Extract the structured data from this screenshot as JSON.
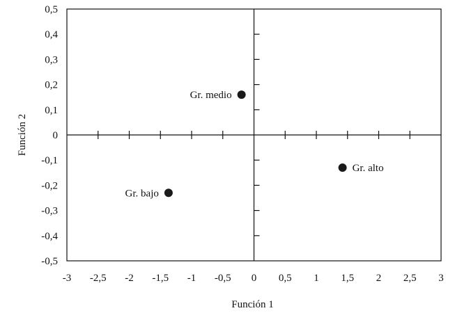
{
  "chart_data": {
    "type": "scatter",
    "xlabel": "Función 1",
    "ylabel": "Función 2",
    "xlim": [
      -3,
      3
    ],
    "ylim": [
      -0.5,
      0.5
    ],
    "x_ticks": [
      -3,
      -2.5,
      -2,
      -1.5,
      -1,
      -0.5,
      0,
      0.5,
      1,
      1.5,
      2,
      2.5,
      3
    ],
    "x_tick_labels": [
      "-3",
      "-2,5",
      "-2",
      "-1,5",
      "-1",
      "-0,5",
      "0",
      "0,5",
      "1",
      "1,5",
      "2",
      "2,5",
      "3"
    ],
    "y_ticks": [
      0.5,
      0.4,
      0.3,
      0.2,
      0.1,
      0,
      -0.1,
      -0.2,
      -0.3,
      -0.4,
      -0.5
    ],
    "y_tick_labels": [
      "0,5",
      "0,4",
      "0,3",
      "0,2",
      "0,1",
      "0",
      "-0,1",
      "-0,2",
      "-0,3",
      "-0,4",
      "-0,5"
    ],
    "points": [
      {
        "label": "Gr. medio",
        "x": -0.2,
        "y": 0.16,
        "label_side": "left"
      },
      {
        "label": "Gr. alto",
        "x": 1.42,
        "y": -0.13,
        "label_side": "right"
      },
      {
        "label": "Gr. bajo",
        "x": -1.37,
        "y": -0.23,
        "label_side": "left"
      }
    ],
    "grid": false,
    "point_color": "#1a1a1a",
    "axis_color": "#111111"
  }
}
